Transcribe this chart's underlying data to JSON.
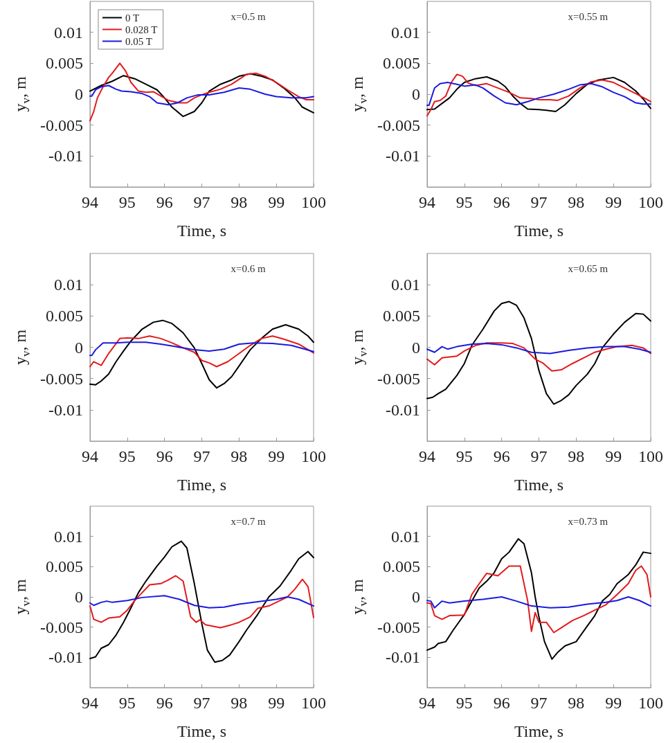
{
  "chart_data": [
    {
      "type": "line",
      "annotations": [
        "x=0.5 m"
      ],
      "xlabel": "Time, s",
      "ylabel": "y$_{v}$, m",
      "xlim": [
        94,
        100
      ],
      "ylim": [
        -0.015,
        0.015
      ],
      "xticks": [
        94,
        95,
        96,
        97,
        98,
        99,
        100
      ],
      "yticks": [
        -0.01,
        -0.005,
        0,
        0.005,
        0.01
      ],
      "legend": "top left",
      "series": [
        {
          "name": "0 T",
          "color": "#000000",
          "x": [
            94,
            94.3,
            94.6,
            94.9,
            95.2,
            95.5,
            95.8,
            96.0,
            96.2,
            96.5,
            96.8,
            97.0,
            97.2,
            97.5,
            97.8,
            98.0,
            98.3,
            98.6,
            98.9,
            99.2,
            99.5,
            99.7,
            100
          ],
          "values": [
            0.0005,
            0.0014,
            0.0021,
            0.003,
            0.0025,
            0.0016,
            0.0007,
            -0.0006,
            -0.0021,
            -0.0036,
            -0.0028,
            -0.0014,
            0.0005,
            0.0016,
            0.0023,
            0.0029,
            0.0033,
            0.0029,
            0.0023,
            0.001,
            -0.0006,
            -0.0021,
            -0.003
          ]
        },
        {
          "name": "0.028 T",
          "color": "#e31a1c",
          "x": [
            94,
            94.1,
            94.2,
            94.35,
            94.5,
            94.6,
            94.8,
            94.95,
            95.1,
            95.3,
            95.5,
            95.7,
            95.9,
            96.1,
            96.4,
            96.6,
            96.8,
            97.0,
            97.2,
            97.5,
            97.8,
            98.0,
            98.2,
            98.45,
            98.7,
            99.0,
            99.3,
            99.6,
            99.8,
            100
          ],
          "values": [
            -0.0043,
            -0.0028,
            -0.0006,
            0.0012,
            0.0027,
            0.0034,
            0.005,
            0.0038,
            0.0019,
            0.0005,
            0.0003,
            0.0004,
            -0.0003,
            -0.001,
            -0.0014,
            -0.0014,
            -0.0006,
            -0.0001,
            0.0003,
            0.0008,
            0.0016,
            0.0024,
            0.0032,
            0.0034,
            0.0029,
            0.0019,
            0.0007,
            -0.0004,
            -0.0009,
            -0.0009
          ]
        },
        {
          "name": "0.05 T",
          "color": "#1a1adf",
          "x": [
            94,
            94.05,
            94.15,
            94.3,
            94.5,
            94.7,
            94.85,
            95.1,
            95.4,
            95.6,
            95.8,
            96.1,
            96.35,
            96.6,
            96.9,
            97.2,
            97.6,
            98.0,
            98.3,
            98.7,
            99.0,
            99.4,
            99.8,
            100
          ],
          "values": [
            -0.0003,
            -0.0003,
            0.0007,
            0.0012,
            0.0014,
            0.0008,
            0.0005,
            0.0004,
            0.0001,
            -0.0004,
            -0.0014,
            -0.0017,
            -0.0014,
            -0.0006,
            -0.0001,
            -0.0001,
            0.0003,
            0.001,
            0.0008,
            0,
            -0.0004,
            -0.0006,
            -0.0006,
            -0.0004
          ]
        }
      ]
    },
    {
      "type": "line",
      "annotations": [
        "x=0.55 m"
      ],
      "xlabel": "Time, s",
      "ylabel": "y$_{v}$, m",
      "xlim": [
        94,
        100
      ],
      "ylim": [
        -0.015,
        0.015
      ],
      "xticks": [
        94,
        95,
        96,
        97,
        98,
        99,
        100
      ],
      "yticks": [
        -0.01,
        -0.005,
        0,
        0.005,
        0.01
      ],
      "series": [
        {
          "color": "#000000",
          "x": [
            94,
            94.2,
            94.4,
            94.6,
            94.8,
            95.0,
            95.3,
            95.6,
            95.9,
            96.1,
            96.3,
            96.5,
            96.7,
            97.0,
            97.2,
            97.45,
            97.7,
            98.0,
            98.3,
            98.6,
            99.0,
            99.3,
            99.6,
            99.8,
            100
          ],
          "values": [
            -0.0025,
            -0.0024,
            -0.0015,
            -0.0006,
            0.0008,
            0.0019,
            0.0025,
            0.0028,
            0.0021,
            0.0012,
            -0.0003,
            -0.0015,
            -0.0024,
            -0.0025,
            -0.0026,
            -0.0028,
            -0.0017,
            0.0001,
            0.0016,
            0.0023,
            0.0027,
            0.0019,
            0.0005,
            -0.0008,
            -0.0023
          ]
        },
        {
          "color": "#e31a1c",
          "x": [
            94,
            94.1,
            94.2,
            94.35,
            94.5,
            94.65,
            94.8,
            94.95,
            95.1,
            95.3,
            95.6,
            95.9,
            96.2,
            96.5,
            96.8,
            97.0,
            97.3,
            97.5,
            97.8,
            98.1,
            98.4,
            98.7,
            99.0,
            99.3,
            99.6,
            100
          ],
          "values": [
            -0.0035,
            -0.0025,
            -0.0012,
            -0.001,
            -0.0003,
            0.0019,
            0.0032,
            0.0029,
            0.0018,
            0.0014,
            0.0017,
            0.001,
            0.0003,
            -0.0006,
            -0.0007,
            -0.0009,
            -0.0009,
            -0.001,
            -0.0003,
            0.001,
            0.002,
            0.0023,
            0.0019,
            0.001,
            0.0001,
            -0.0012
          ]
        },
        {
          "color": "#1a1adf",
          "x": [
            94,
            94.05,
            94.2,
            94.35,
            94.55,
            94.8,
            95.0,
            95.3,
            95.5,
            95.8,
            96.1,
            96.4,
            96.7,
            97.0,
            97.4,
            97.8,
            98.1,
            98.4,
            98.7,
            99.0,
            99.3,
            99.6,
            99.8,
            100
          ],
          "values": [
            -0.0018,
            -0.0018,
            0.001,
            0.0017,
            0.0019,
            0.0016,
            0.0013,
            0.0015,
            0.001,
            -0.0003,
            -0.0014,
            -0.0017,
            -0.0012,
            -0.0006,
            0,
            0.0008,
            0.0015,
            0.0017,
            0.0012,
            0.0003,
            -0.0004,
            -0.0014,
            -0.0016,
            -0.0016
          ]
        }
      ]
    },
    {
      "type": "line",
      "annotations": [
        "x=0.6 m"
      ],
      "xlabel": "Time, s",
      "ylabel": "y$_{v}$, m",
      "xlim": [
        94,
        100
      ],
      "ylim": [
        -0.015,
        0.015
      ],
      "xticks": [
        94,
        95,
        96,
        97,
        98,
        99,
        100
      ],
      "yticks": [
        -0.01,
        -0.005,
        0,
        0.005,
        0.01
      ],
      "series": [
        {
          "color": "#000000",
          "x": [
            94,
            94.15,
            94.3,
            94.5,
            94.7,
            94.9,
            95.1,
            95.4,
            95.7,
            95.95,
            96.2,
            96.5,
            96.8,
            97.0,
            97.2,
            97.4,
            97.6,
            97.8,
            98.0,
            98.3,
            98.6,
            98.9,
            99.25,
            99.6,
            99.85,
            100
          ],
          "values": [
            -0.0059,
            -0.006,
            -0.0054,
            -0.0043,
            -0.0023,
            -0.0006,
            0.001,
            0.0029,
            0.004,
            0.0043,
            0.0038,
            0.0023,
            -0.0001,
            -0.0026,
            -0.0052,
            -0.0065,
            -0.0058,
            -0.0047,
            -0.003,
            -0.0004,
            0.0014,
            0.0029,
            0.0036,
            0.0029,
            0.0018,
            0.0008
          ]
        },
        {
          "color": "#e31a1c",
          "x": [
            94,
            94.1,
            94.3,
            94.5,
            94.8,
            95.0,
            95.3,
            95.6,
            95.9,
            96.2,
            96.5,
            96.8,
            97.0,
            97.2,
            97.4,
            97.7,
            98.0,
            98.3,
            98.6,
            98.9,
            99.2,
            99.6,
            100
          ],
          "values": [
            -0.0031,
            -0.0023,
            -0.0029,
            -0.001,
            0.0014,
            0.0015,
            0.0014,
            0.0018,
            0.0014,
            0.0007,
            -0.0001,
            -0.0008,
            -0.0021,
            -0.0025,
            -0.0031,
            -0.0023,
            -0.001,
            0.0003,
            0.0014,
            0.0018,
            0.0013,
            0.0005,
            -0.0009
          ]
        },
        {
          "color": "#1a1adf",
          "x": [
            94,
            94.05,
            94.15,
            94.35,
            94.7,
            95.0,
            95.5,
            95.9,
            96.3,
            96.8,
            97.2,
            97.6,
            98.0,
            98.4,
            98.9,
            99.4,
            100
          ],
          "values": [
            -0.0013,
            -0.0013,
            -0.0004,
            0.0007,
            0.0007,
            0.0008,
            0.0008,
            0.0005,
            0.0001,
            -0.0004,
            -0.0006,
            -0.0003,
            0.0005,
            0.0007,
            0.0006,
            0.0003,
            -0.0007
          ]
        }
      ]
    },
    {
      "type": "line",
      "annotations": [
        "x=0.65 m"
      ],
      "xlabel": "Time, s",
      "ylabel": "y$_{v}$, m",
      "xlim": [
        94,
        100
      ],
      "ylim": [
        -0.015,
        0.015
      ],
      "xticks": [
        94,
        95,
        96,
        97,
        98,
        99,
        100
      ],
      "yticks": [
        -0.01,
        -0.005,
        0,
        0.005,
        0.01
      ],
      "series": [
        {
          "color": "#000000",
          "x": [
            94,
            94.15,
            94.3,
            94.5,
            94.8,
            95.0,
            95.2,
            95.5,
            95.8,
            96.0,
            96.2,
            96.4,
            96.6,
            96.8,
            97.0,
            97.2,
            97.4,
            97.6,
            97.8,
            98.0,
            98.3,
            98.5,
            98.7,
            99.0,
            99.3,
            99.6,
            99.8,
            100
          ],
          "values": [
            -0.0082,
            -0.008,
            -0.0074,
            -0.0067,
            -0.0045,
            -0.0026,
            0.0003,
            0.0029,
            0.0058,
            0.007,
            0.0073,
            0.0067,
            0.0047,
            0.0014,
            -0.0037,
            -0.0074,
            -0.0091,
            -0.0085,
            -0.0076,
            -0.0061,
            -0.0043,
            -0.0026,
            -0.0001,
            0.0021,
            0.004,
            0.0054,
            0.0053,
            0.0042
          ]
        },
        {
          "color": "#e31a1c",
          "x": [
            94,
            94.2,
            94.4,
            94.8,
            95.0,
            95.3,
            95.6,
            96.0,
            96.3,
            96.6,
            96.9,
            97.1,
            97.35,
            97.6,
            97.9,
            98.2,
            98.5,
            98.8,
            99.1,
            99.5,
            99.8,
            100
          ],
          "values": [
            -0.0019,
            -0.0028,
            -0.0017,
            -0.0014,
            -0.0006,
            0.0003,
            0.0007,
            0.0007,
            0.0006,
            -0.0001,
            -0.0019,
            -0.0025,
            -0.0038,
            -0.0036,
            -0.0026,
            -0.0017,
            -0.0008,
            -0.0003,
            0.0001,
            0.0003,
            -0.0001,
            -0.001
          ]
        },
        {
          "color": "#1a1adf",
          "x": [
            94,
            94.2,
            94.4,
            94.55,
            94.8,
            95.2,
            95.6,
            96.0,
            96.4,
            96.8,
            97.3,
            97.8,
            98.3,
            98.8,
            99.3,
            99.7,
            100
          ],
          "values": [
            -0.0003,
            -0.0008,
            0.0001,
            -0.0003,
            0.0001,
            0.0005,
            0.0006,
            0.0004,
            -0.0001,
            -0.0008,
            -0.001,
            -0.0005,
            -0.0001,
            0.0001,
            0.0001,
            -0.0003,
            -0.0008
          ]
        }
      ]
    },
    {
      "type": "line",
      "annotations": [
        "x=0.7 m"
      ],
      "xlabel": "Time, s",
      "ylabel": "y$_{v}$, m",
      "xlim": [
        94,
        100
      ],
      "ylim": [
        -0.015,
        0.015
      ],
      "xticks": [
        94,
        95,
        96,
        97,
        98,
        99,
        100
      ],
      "yticks": [
        -0.01,
        -0.005,
        0,
        0.005,
        0.01
      ],
      "series": [
        {
          "color": "#000000",
          "x": [
            94,
            94.15,
            94.3,
            94.5,
            94.7,
            94.9,
            95.1,
            95.3,
            95.5,
            95.8,
            96.0,
            96.2,
            96.45,
            96.6,
            96.8,
            97.0,
            97.15,
            97.35,
            97.55,
            97.75,
            98.0,
            98.2,
            98.5,
            98.8,
            99.1,
            99.4,
            99.6,
            99.85,
            100
          ],
          "values": [
            -0.0102,
            -0.0099,
            -0.0085,
            -0.0079,
            -0.0063,
            -0.0042,
            -0.0018,
            0.0007,
            0.0026,
            0.0051,
            0.0066,
            0.0083,
            0.0092,
            0.0081,
            0.0022,
            -0.0044,
            -0.0088,
            -0.0108,
            -0.0105,
            -0.0096,
            -0.0074,
            -0.0055,
            -0.0029,
            0,
            0.0018,
            0.0044,
            0.0063,
            0.0075,
            0.0065
          ]
        },
        {
          "color": "#e31a1c",
          "x": [
            94,
            94.1,
            94.3,
            94.5,
            94.8,
            95.0,
            95.2,
            95.4,
            95.6,
            95.9,
            96.1,
            96.3,
            96.5,
            96.7,
            96.85,
            96.95,
            97.1,
            97.5,
            97.8,
            98.0,
            98.3,
            98.5,
            98.8,
            99.0,
            99.3,
            99.5,
            99.7,
            99.85,
            100
          ],
          "values": [
            -0.0015,
            -0.0037,
            -0.0042,
            -0.0035,
            -0.0033,
            -0.0022,
            -0.0006,
            0.0007,
            0.002,
            0.0022,
            0.0028,
            0.0035,
            0.0026,
            -0.0033,
            -0.0042,
            -0.0038,
            -0.0046,
            -0.0051,
            -0.0046,
            -0.0042,
            -0.0033,
            -0.0019,
            -0.0015,
            -0.0009,
            0,
            0.0013,
            0.0029,
            0.0017,
            -0.0034
          ]
        },
        {
          "color": "#1a1adf",
          "x": [
            94,
            94.1,
            94.3,
            94.45,
            94.6,
            95.0,
            95.4,
            96.0,
            96.4,
            96.8,
            97.2,
            97.6,
            98.0,
            98.5,
            99.0,
            99.3,
            99.6,
            100
          ],
          "values": [
            -0.001,
            -0.0014,
            -0.0009,
            -0.0007,
            -0.0009,
            -0.0006,
            -0.0001,
            0.0002,
            -0.0004,
            -0.0014,
            -0.0018,
            -0.0017,
            -0.0012,
            -0.0008,
            -0.0004,
            0,
            -0.0004,
            -0.0015
          ]
        }
      ]
    },
    {
      "type": "line",
      "annotations": [
        "x=0.73 m"
      ],
      "xlabel": "Time, s",
      "ylabel": "y$_{v}$, m",
      "xlim": [
        94,
        100
      ],
      "ylim": [
        -0.015,
        0.015
      ],
      "xticks": [
        94,
        95,
        96,
        97,
        98,
        99,
        100
      ],
      "yticks": [
        -0.01,
        -0.005,
        0,
        0.005,
        0.01
      ],
      "series": [
        {
          "color": "#000000",
          "x": [
            94,
            94.2,
            94.3,
            94.5,
            94.7,
            95.0,
            95.2,
            95.4,
            95.6,
            95.8,
            96.0,
            96.2,
            96.45,
            96.6,
            96.8,
            96.9,
            97.0,
            97.15,
            97.35,
            97.5,
            97.7,
            98.0,
            98.3,
            98.5,
            98.7,
            98.9,
            99.1,
            99.4,
            99.6,
            99.8,
            100
          ],
          "values": [
            -0.0088,
            -0.0083,
            -0.0077,
            -0.0074,
            -0.0055,
            -0.0029,
            -0.0007,
            0.0015,
            0.0026,
            0.004,
            0.0063,
            0.0074,
            0.0096,
            0.0088,
            0.004,
            0,
            -0.0033,
            -0.0074,
            -0.0103,
            -0.0092,
            -0.0081,
            -0.0074,
            -0.0048,
            -0.0031,
            -0.0007,
            0.0004,
            0.0022,
            0.0037,
            0.0053,
            0.0074,
            0.0072
          ]
        },
        {
          "color": "#e31a1c",
          "x": [
            94,
            94.1,
            94.2,
            94.4,
            94.6,
            95.0,
            95.2,
            95.4,
            95.6,
            95.9,
            96.2,
            96.5,
            96.7,
            96.8,
            96.9,
            97.0,
            97.2,
            97.4,
            97.6,
            97.9,
            98.2,
            98.5,
            98.8,
            99.1,
            99.4,
            99.6,
            99.75,
            99.9,
            100
          ],
          "values": [
            -0.001,
            -0.0011,
            -0.0031,
            -0.0037,
            -0.0031,
            -0.003,
            0.0004,
            0.0022,
            0.0039,
            0.0035,
            0.0051,
            0.0051,
            -0.0007,
            -0.0057,
            -0.0026,
            -0.0042,
            -0.0042,
            -0.0059,
            -0.0051,
            -0.0039,
            -0.0031,
            -0.0022,
            -0.0013,
            0.0004,
            0.0022,
            0.0044,
            0.0051,
            0.0037,
            0
          ]
        },
        {
          "color": "#1a1adf",
          "x": [
            94,
            94.1,
            94.2,
            94.4,
            94.6,
            95.0,
            95.5,
            96.0,
            96.4,
            96.8,
            97.3,
            97.8,
            98.3,
            98.8,
            99.1,
            99.4,
            99.7,
            100
          ],
          "values": [
            -0.0006,
            -0.0007,
            -0.0018,
            -0.0007,
            -0.001,
            -0.0007,
            -0.0004,
            0,
            -0.0007,
            -0.0015,
            -0.0018,
            -0.0017,
            -0.0012,
            -0.0009,
            -0.0006,
            0,
            -0.0006,
            -0.0015
          ]
        }
      ]
    }
  ]
}
